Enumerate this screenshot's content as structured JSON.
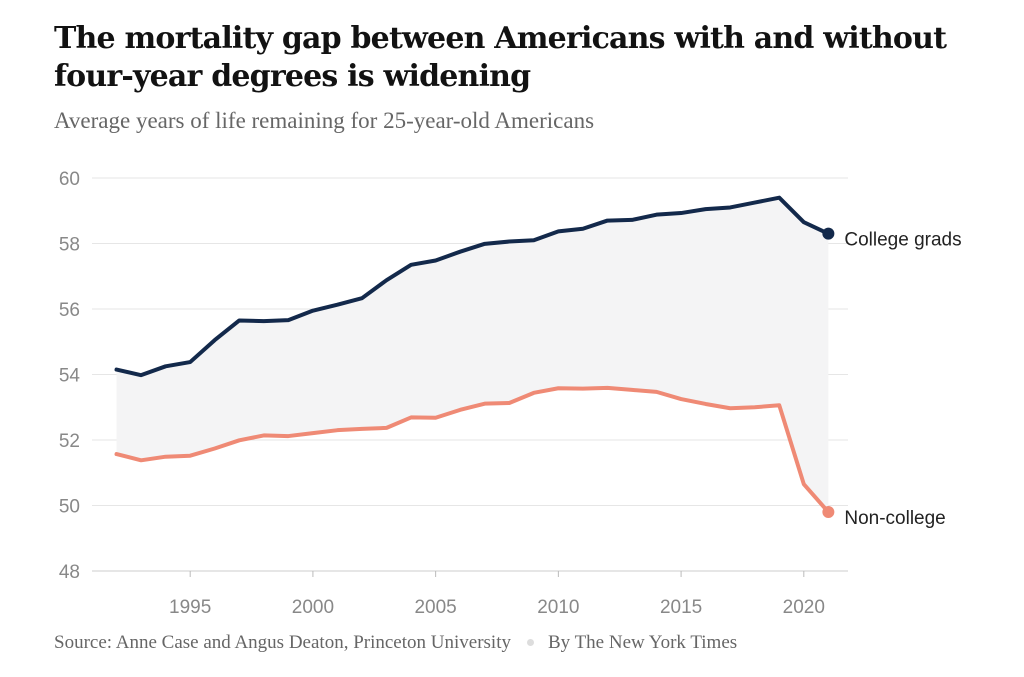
{
  "title": "The mortality gap between Americans with and without four-year degrees is widening",
  "subtitle": "Average years of life remaining for 25-year-old Americans",
  "source": "Source: Anne Case and Angus Deaton, Princeton University",
  "byline": "By The New York Times",
  "chart_data": {
    "type": "line",
    "x": [
      1992,
      1993,
      1994,
      1995,
      1996,
      1997,
      1998,
      1999,
      2000,
      2001,
      2002,
      2003,
      2004,
      2005,
      2006,
      2007,
      2008,
      2009,
      2010,
      2011,
      2012,
      2013,
      2014,
      2015,
      2016,
      2017,
      2018,
      2019,
      2020,
      2021
    ],
    "series": [
      {
        "name": "College grads",
        "color": "#13294b",
        "values": [
          54.15,
          53.98,
          54.25,
          54.38,
          55.05,
          55.65,
          55.63,
          55.66,
          55.95,
          56.13,
          56.33,
          56.88,
          57.35,
          57.48,
          57.75,
          57.99,
          58.06,
          58.1,
          58.37,
          58.45,
          58.7,
          58.72,
          58.88,
          58.93,
          59.05,
          59.1,
          59.25,
          59.4,
          58.65,
          58.3
        ]
      },
      {
        "name": "Non-college",
        "color": "#ef8a75",
        "values": [
          51.57,
          51.38,
          51.49,
          51.52,
          51.74,
          51.99,
          52.14,
          52.12,
          52.21,
          52.3,
          52.34,
          52.37,
          52.69,
          52.68,
          52.92,
          53.11,
          53.13,
          53.44,
          53.58,
          53.57,
          53.59,
          53.53,
          53.47,
          53.25,
          53.1,
          52.97,
          53.0,
          53.06,
          50.65,
          49.8
        ]
      }
    ],
    "xticks": [
      1995,
      2000,
      2005,
      2010,
      2015,
      2020
    ],
    "yticks": [
      48,
      50,
      52,
      54,
      56,
      58,
      60
    ],
    "xlim": [
      1991,
      2021.8
    ],
    "ylim": [
      48,
      60
    ],
    "shade_between_series": true,
    "grid": "horizontal",
    "legend": "end-of-line labels"
  }
}
